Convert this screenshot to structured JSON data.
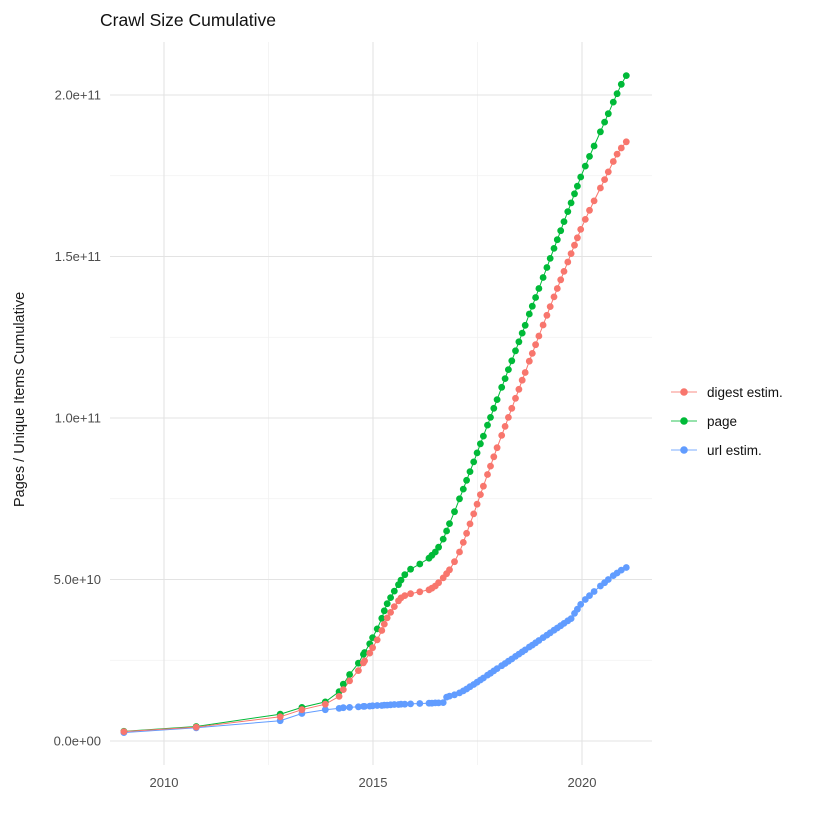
{
  "chart": {
    "title": "Crawl Size Cumulative",
    "y_axis": {
      "label": "Pages / Unique Items Cumulative",
      "ticks": [
        {
          "label": "0.0e+00",
          "value": 0
        },
        {
          "label": "5.0e+10",
          "value": 50
        },
        {
          "label": "1.0e+11",
          "value": 100
        },
        {
          "label": "1.5e+11",
          "value": 150
        },
        {
          "label": "2.0e+11",
          "value": 200
        }
      ]
    },
    "x_axis": {
      "ticks": [
        {
          "label": "2010",
          "value": 2010
        },
        {
          "label": "2015",
          "value": 2015
        },
        {
          "label": "2020",
          "value": 2020
        }
      ]
    },
    "legend": {
      "items": [
        {
          "label": "digest estim.",
          "color": "#F8766D"
        },
        {
          "label": "page",
          "color": "#00BA38"
        },
        {
          "label": "url estim.",
          "color": "#619CFF"
        }
      ]
    }
  },
  "chart_data": {
    "type": "scatter",
    "title": "Crawl Size Cumulative",
    "xlabel": "",
    "ylabel": "Pages / Unique Items Cumulative",
    "value_unit": "1e9 (billions of pages / unique items)",
    "xlim": [
      2008.7,
      2021.7
    ],
    "ylim_e9": [
      0,
      215
    ],
    "x_major_gridlines": [
      2010,
      2015,
      2020
    ],
    "x_minor_gridlines": [
      2012.5,
      2017.5
    ],
    "y_major_gridlines_e9": [
      0,
      50,
      100,
      150,
      200
    ],
    "y_minor_gridlines_e9": [
      25,
      75,
      125,
      175
    ],
    "grid": true,
    "legend_position": "right",
    "marker": "point-with-line",
    "series": [
      {
        "name": "page",
        "color": "#00BA38",
        "points": [
          [
            2009.04,
            3.0
          ],
          [
            2010.77,
            4.5
          ],
          [
            2012.78,
            8.3
          ],
          [
            2013.3,
            10.4
          ],
          [
            2013.86,
            12.1
          ],
          [
            2014.19,
            15.3
          ],
          [
            2014.29,
            17.6
          ],
          [
            2014.44,
            20.6
          ],
          [
            2014.65,
            24.1
          ],
          [
            2014.77,
            26.8
          ],
          [
            2014.8,
            27.4
          ],
          [
            2014.92,
            30.1
          ],
          [
            2014.99,
            32.0
          ],
          [
            2015.1,
            34.7
          ],
          [
            2015.21,
            38.0
          ],
          [
            2015.27,
            40.3
          ],
          [
            2015.34,
            42.5
          ],
          [
            2015.42,
            44.4
          ],
          [
            2015.51,
            46.4
          ],
          [
            2015.61,
            48.4
          ],
          [
            2015.67,
            49.8
          ],
          [
            2015.76,
            51.5
          ],
          [
            2015.9,
            53.2
          ],
          [
            2016.12,
            54.8
          ],
          [
            2016.34,
            56.6
          ],
          [
            2016.41,
            57.5
          ],
          [
            2016.49,
            58.5
          ],
          [
            2016.57,
            60.0
          ],
          [
            2016.68,
            62.5
          ],
          [
            2016.76,
            65.0
          ],
          [
            2016.83,
            67.3
          ],
          [
            2016.95,
            71.0
          ],
          [
            2017.07,
            75.0
          ],
          [
            2017.16,
            78.0
          ],
          [
            2017.24,
            80.7
          ],
          [
            2017.32,
            83.4
          ],
          [
            2017.41,
            86.4
          ],
          [
            2017.49,
            89.2
          ],
          [
            2017.57,
            92.0
          ],
          [
            2017.64,
            94.4
          ],
          [
            2017.74,
            97.8
          ],
          [
            2017.81,
            100.2
          ],
          [
            2017.89,
            103.0
          ],
          [
            2017.97,
            105.7
          ],
          [
            2018.08,
            109.5
          ],
          [
            2018.16,
            112.2
          ],
          [
            2018.24,
            115.0
          ],
          [
            2018.32,
            117.7
          ],
          [
            2018.41,
            120.8
          ],
          [
            2018.49,
            123.6
          ],
          [
            2018.57,
            126.3
          ],
          [
            2018.64,
            128.7
          ],
          [
            2018.74,
            132.2
          ],
          [
            2018.81,
            134.6
          ],
          [
            2018.89,
            137.3
          ],
          [
            2018.97,
            140.1
          ],
          [
            2019.07,
            143.5
          ],
          [
            2019.16,
            146.6
          ],
          [
            2019.24,
            149.4
          ],
          [
            2019.33,
            152.5
          ],
          [
            2019.41,
            155.2
          ],
          [
            2019.49,
            158.0
          ],
          [
            2019.57,
            160.8
          ],
          [
            2019.66,
            163.9
          ],
          [
            2019.74,
            166.6
          ],
          [
            2019.82,
            169.4
          ],
          [
            2019.89,
            171.8
          ],
          [
            2019.97,
            174.6
          ],
          [
            2020.08,
            178.0
          ],
          [
            2020.18,
            181.0
          ],
          [
            2020.29,
            184.2
          ],
          [
            2020.44,
            188.6
          ],
          [
            2020.54,
            191.6
          ],
          [
            2020.63,
            194.2
          ],
          [
            2020.75,
            197.8
          ],
          [
            2020.84,
            200.4
          ],
          [
            2020.94,
            203.3
          ],
          [
            2021.06,
            206.0
          ]
        ]
      },
      {
        "name": "url estim.",
        "color": "#619CFF",
        "points": [
          [
            2009.04,
            2.6
          ],
          [
            2010.77,
            4.1
          ],
          [
            2012.78,
            6.3
          ],
          [
            2013.3,
            8.5
          ],
          [
            2013.86,
            9.7
          ],
          [
            2014.19,
            10.1
          ],
          [
            2014.29,
            10.3
          ],
          [
            2014.44,
            10.4
          ],
          [
            2014.65,
            10.6
          ],
          [
            2014.77,
            10.7
          ],
          [
            2014.8,
            10.7
          ],
          [
            2014.92,
            10.8
          ],
          [
            2014.99,
            10.9
          ],
          [
            2015.1,
            11.0
          ],
          [
            2015.21,
            11.0
          ],
          [
            2015.27,
            11.1
          ],
          [
            2015.34,
            11.1
          ],
          [
            2015.42,
            11.2
          ],
          [
            2015.51,
            11.3
          ],
          [
            2015.61,
            11.3
          ],
          [
            2015.67,
            11.4
          ],
          [
            2015.76,
            11.4
          ],
          [
            2015.9,
            11.5
          ],
          [
            2016.12,
            11.6
          ],
          [
            2016.34,
            11.7
          ],
          [
            2016.41,
            11.7
          ],
          [
            2016.49,
            11.8
          ],
          [
            2016.57,
            11.8
          ],
          [
            2016.68,
            11.9
          ],
          [
            2016.76,
            13.6
          ],
          [
            2016.83,
            13.9
          ],
          [
            2016.95,
            14.3
          ],
          [
            2017.07,
            14.9
          ],
          [
            2017.16,
            15.5
          ],
          [
            2017.24,
            16.1
          ],
          [
            2017.32,
            16.8
          ],
          [
            2017.41,
            17.5
          ],
          [
            2017.49,
            18.2
          ],
          [
            2017.57,
            18.9
          ],
          [
            2017.64,
            19.5
          ],
          [
            2017.74,
            20.4
          ],
          [
            2017.81,
            21.0
          ],
          [
            2017.89,
            21.7
          ],
          [
            2017.97,
            22.4
          ],
          [
            2018.08,
            23.3
          ],
          [
            2018.16,
            24.0
          ],
          [
            2018.24,
            24.7
          ],
          [
            2018.32,
            25.4
          ],
          [
            2018.41,
            26.2
          ],
          [
            2018.49,
            26.9
          ],
          [
            2018.57,
            27.6
          ],
          [
            2018.64,
            28.2
          ],
          [
            2018.74,
            29.1
          ],
          [
            2018.81,
            29.7
          ],
          [
            2018.89,
            30.4
          ],
          [
            2018.97,
            31.1
          ],
          [
            2019.07,
            32.0
          ],
          [
            2019.16,
            32.8
          ],
          [
            2019.24,
            33.5
          ],
          [
            2019.33,
            34.3
          ],
          [
            2019.41,
            35.0
          ],
          [
            2019.49,
            35.7
          ],
          [
            2019.57,
            36.4
          ],
          [
            2019.66,
            37.2
          ],
          [
            2019.74,
            37.9
          ],
          [
            2019.82,
            39.5
          ],
          [
            2019.89,
            40.8
          ],
          [
            2019.97,
            42.3
          ],
          [
            2020.08,
            43.8
          ],
          [
            2020.18,
            45.0
          ],
          [
            2020.29,
            46.3
          ],
          [
            2020.44,
            48.0
          ],
          [
            2020.54,
            49.0
          ],
          [
            2020.63,
            50.0
          ],
          [
            2020.75,
            51.2
          ],
          [
            2020.84,
            52.0
          ],
          [
            2020.94,
            52.9
          ],
          [
            2021.06,
            53.7
          ]
        ]
      },
      {
        "name": "digest estim.",
        "color": "#F8766D",
        "points": [
          [
            2009.04,
            2.9
          ],
          [
            2010.77,
            4.3
          ],
          [
            2012.78,
            7.5
          ],
          [
            2013.3,
            9.7
          ],
          [
            2013.86,
            11.4
          ],
          [
            2014.19,
            13.8
          ],
          [
            2014.29,
            15.9
          ],
          [
            2014.44,
            18.6
          ],
          [
            2014.65,
            21.8
          ],
          [
            2014.77,
            24.2
          ],
          [
            2014.8,
            24.8
          ],
          [
            2014.92,
            27.2
          ],
          [
            2014.99,
            28.9
          ],
          [
            2015.1,
            31.3
          ],
          [
            2015.21,
            34.2
          ],
          [
            2015.27,
            36.2
          ],
          [
            2015.34,
            38.1
          ],
          [
            2015.42,
            39.8
          ],
          [
            2015.51,
            41.6
          ],
          [
            2015.61,
            43.4
          ],
          [
            2015.67,
            44.3
          ],
          [
            2015.76,
            45.0
          ],
          [
            2015.9,
            45.6
          ],
          [
            2016.12,
            46.2
          ],
          [
            2016.34,
            46.8
          ],
          [
            2016.41,
            47.3
          ],
          [
            2016.49,
            48.0
          ],
          [
            2016.57,
            49.0
          ],
          [
            2016.68,
            50.5
          ],
          [
            2016.76,
            51.8
          ],
          [
            2016.83,
            53.0
          ],
          [
            2016.95,
            55.5
          ],
          [
            2017.07,
            58.5
          ],
          [
            2017.16,
            61.5
          ],
          [
            2017.24,
            64.3
          ],
          [
            2017.32,
            67.2
          ],
          [
            2017.41,
            70.3
          ],
          [
            2017.49,
            73.3
          ],
          [
            2017.57,
            76.3
          ],
          [
            2017.64,
            78.9
          ],
          [
            2017.74,
            82.5
          ],
          [
            2017.81,
            85.1
          ],
          [
            2017.89,
            88.0
          ],
          [
            2017.97,
            90.8
          ],
          [
            2018.08,
            94.6
          ],
          [
            2018.16,
            97.4
          ],
          [
            2018.24,
            100.2
          ],
          [
            2018.32,
            103.0
          ],
          [
            2018.41,
            106.1
          ],
          [
            2018.49,
            108.9
          ],
          [
            2018.57,
            111.7
          ],
          [
            2018.64,
            114.1
          ],
          [
            2018.74,
            117.6
          ],
          [
            2018.81,
            120.0
          ],
          [
            2018.89,
            122.7
          ],
          [
            2018.97,
            125.4
          ],
          [
            2019.07,
            128.8
          ],
          [
            2019.16,
            131.8
          ],
          [
            2019.24,
            134.5
          ],
          [
            2019.33,
            137.5
          ],
          [
            2019.41,
            140.1
          ],
          [
            2019.49,
            142.8
          ],
          [
            2019.57,
            145.4
          ],
          [
            2019.66,
            148.3
          ],
          [
            2019.74,
            150.9
          ],
          [
            2019.82,
            153.5
          ],
          [
            2019.89,
            155.8
          ],
          [
            2019.97,
            158.4
          ],
          [
            2020.08,
            161.5
          ],
          [
            2020.18,
            164.3
          ],
          [
            2020.29,
            167.2
          ],
          [
            2020.44,
            171.2
          ],
          [
            2020.54,
            173.8
          ],
          [
            2020.63,
            176.2
          ],
          [
            2020.75,
            179.4
          ],
          [
            2020.84,
            181.7
          ],
          [
            2020.94,
            183.6
          ],
          [
            2021.06,
            185.5
          ]
        ]
      }
    ]
  }
}
